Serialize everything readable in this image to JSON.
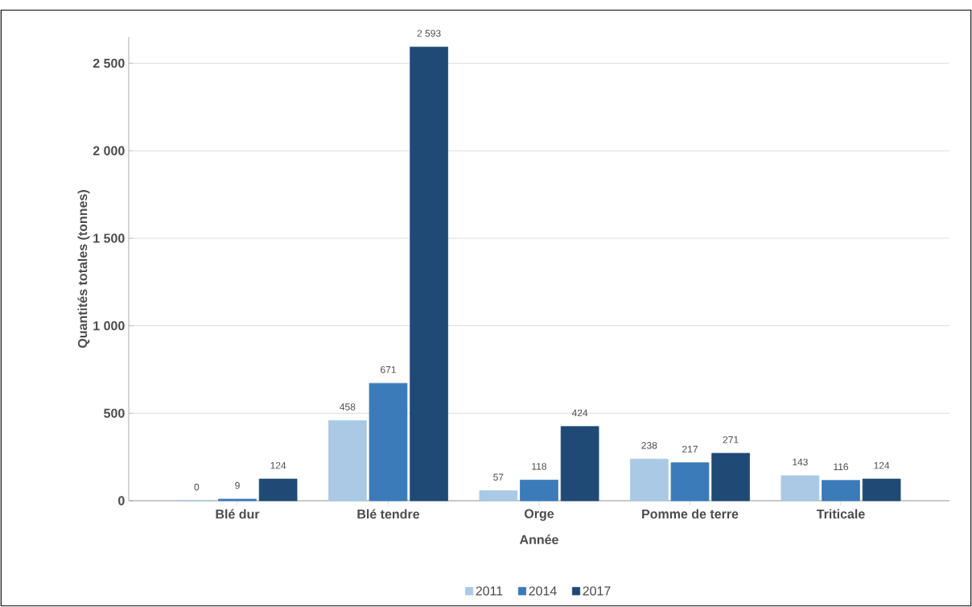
{
  "chart_data": {
    "type": "bar",
    "xlabel": "Année",
    "ylabel": "Quantités totales (tonnes)",
    "categories": [
      "Blé dur",
      "Blé tendre",
      "Orge",
      "Pomme de terre",
      "Triticale"
    ],
    "series": [
      {
        "name": "2011",
        "color": "#a9c9e4",
        "values": [
          0,
          458,
          57,
          238,
          143
        ],
        "value_labels": [
          "0",
          "458",
          "57",
          "238",
          "143"
        ]
      },
      {
        "name": "2014",
        "color": "#3b7bb9",
        "values": [
          9,
          671,
          118,
          217,
          116
        ],
        "value_labels": [
          "9",
          "671",
          "118",
          "217",
          "116"
        ]
      },
      {
        "name": "2017",
        "color": "#1f4a75",
        "values": [
          124,
          2593,
          424,
          271,
          124
        ],
        "value_labels": [
          "124",
          "2 593",
          "424",
          "271",
          "124"
        ]
      }
    ],
    "ylim": [
      0,
      2650
    ],
    "yticks": [
      0,
      500,
      {
        "value": 1000,
        "label": "1 000"
      },
      {
        "value": 1500,
        "label": "1 500"
      },
      {
        "value": 2000,
        "label": "2 000"
      },
      {
        "value": 2500,
        "label": "2 500"
      }
    ],
    "grid": "y",
    "legend": "bottom"
  }
}
